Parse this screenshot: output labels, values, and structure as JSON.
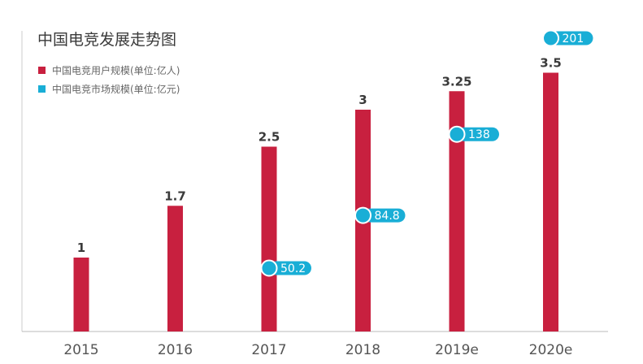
{
  "chart_data": {
    "type": "bar",
    "title": "中国电竞发展走势图",
    "categories": [
      "2015",
      "2016",
      "2017",
      "2018",
      "2019e",
      "2020e"
    ],
    "series": [
      {
        "name": "中国电竞用户规模(单位:亿人)",
        "kind": "bar",
        "color": "#c8203f",
        "values": [
          1,
          1.7,
          2.5,
          3,
          3.25,
          3.5
        ],
        "labels": [
          "1",
          "1.7",
          "2.5",
          "3",
          "3.25",
          "3.5"
        ]
      },
      {
        "name": "中国电竞市场规模(单位:亿元)",
        "kind": "bubble",
        "color": "#19aed6",
        "values": [
          null,
          null,
          50.2,
          84.8,
          138,
          201
        ],
        "labels": [
          "",
          "",
          "50.2",
          "84.8",
          "138",
          "201"
        ]
      }
    ],
    "legend_position": "top-left",
    "grid": false,
    "xlabel": "",
    "ylabel": ""
  }
}
